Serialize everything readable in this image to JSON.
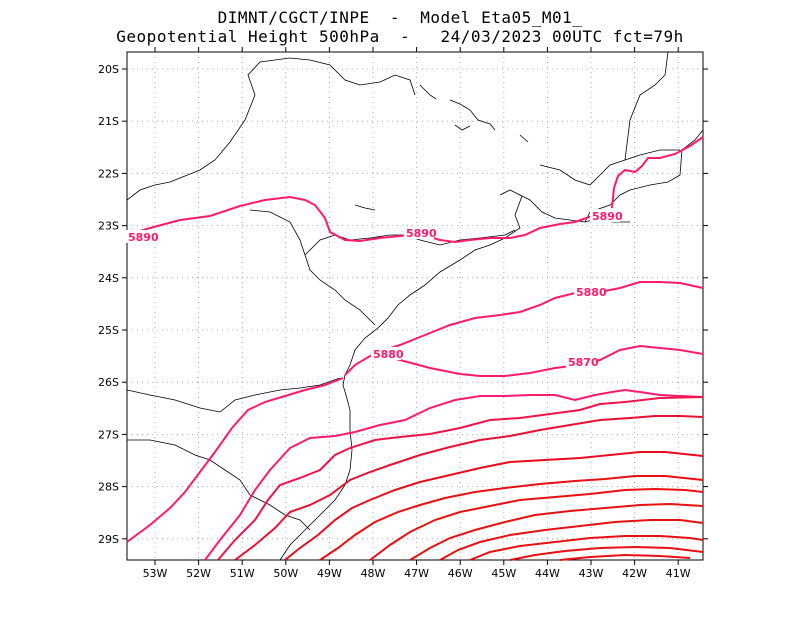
{
  "header": {
    "line1": "DIMNT/CGCT/INPE  -  Model Eta05_M01_",
    "line2": "Geopotential Height 500hPa  -   24/03/2023 00UTC fct=79h"
  },
  "map": {
    "lat_ticks": [
      "20S",
      "21S",
      "22S",
      "23S",
      "24S",
      "25S",
      "26S",
      "27S",
      "28S",
      "29S"
    ],
    "lon_ticks": [
      "53W",
      "52W",
      "51W",
      "50W",
      "49W",
      "48W",
      "47W",
      "46W",
      "45W",
      "44W",
      "43W",
      "42W",
      "41W"
    ],
    "contour_labels": [
      {
        "text": "5890"
      },
      {
        "text": "5890"
      },
      {
        "text": "5890"
      },
      {
        "text": "5880"
      },
      {
        "text": "5880"
      },
      {
        "text": "5870"
      }
    ],
    "colors": {
      "contour_pink": "#ff1a6e",
      "contour_red": "#e81010",
      "coast": "#000000",
      "grid": "#999999"
    }
  }
}
